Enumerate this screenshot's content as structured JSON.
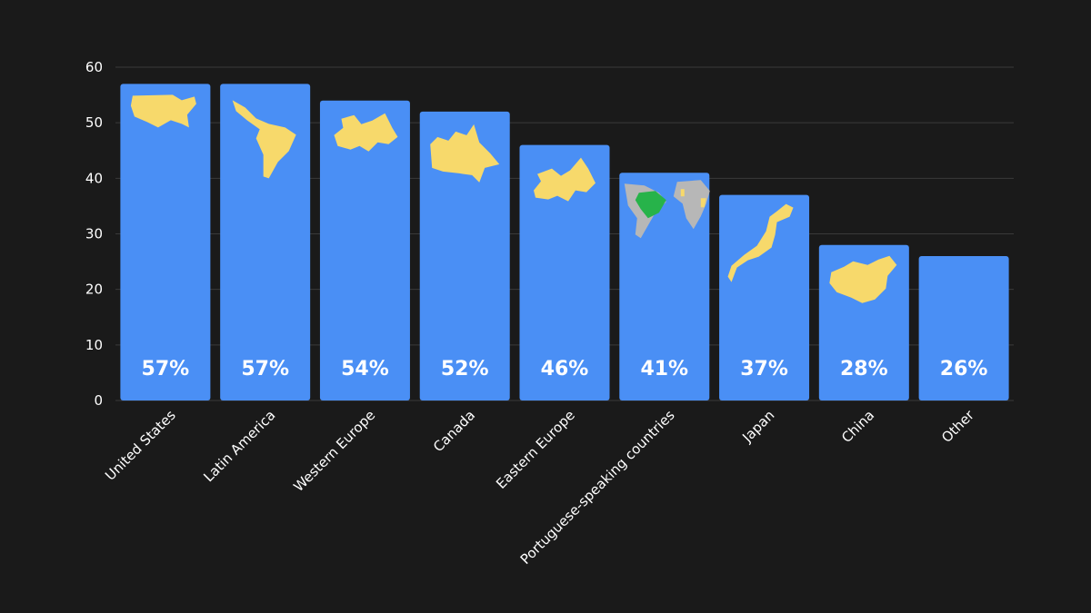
{
  "colors": {
    "background": "#1a1a1a",
    "bar": "#4a8ff5",
    "map": "#f7d96b",
    "map_gray": "#b7b7b7",
    "map_green": "#27b34a",
    "grid": "#3a3a3a",
    "text": "#ffffff"
  },
  "chart_data": {
    "type": "bar",
    "title": "",
    "xlabel": "",
    "ylabel": "",
    "ylim": [
      0,
      60
    ],
    "yticks": [
      0,
      10,
      20,
      30,
      40,
      50,
      60
    ],
    "grid": true,
    "categories": [
      "United States",
      "Latin America",
      "Western Europe",
      "Canada",
      "Eastern Europe",
      "Portuguese-speaking countries",
      "Japan",
      "China",
      "Other"
    ],
    "values": [
      57,
      57,
      54,
      52,
      46,
      41,
      37,
      28,
      26
    ],
    "value_labels": [
      "57%",
      "57%",
      "54%",
      "52%",
      "46%",
      "41%",
      "37%",
      "28%",
      "26%"
    ],
    "bar_icons": [
      "usa-map-icon",
      "latin-america-map-icon",
      "western-europe-map-icon",
      "canada-map-icon",
      "eastern-europe-map-icon",
      "portuguese-speaking-map-icon",
      "japan-map-icon",
      "china-map-icon",
      ""
    ]
  }
}
